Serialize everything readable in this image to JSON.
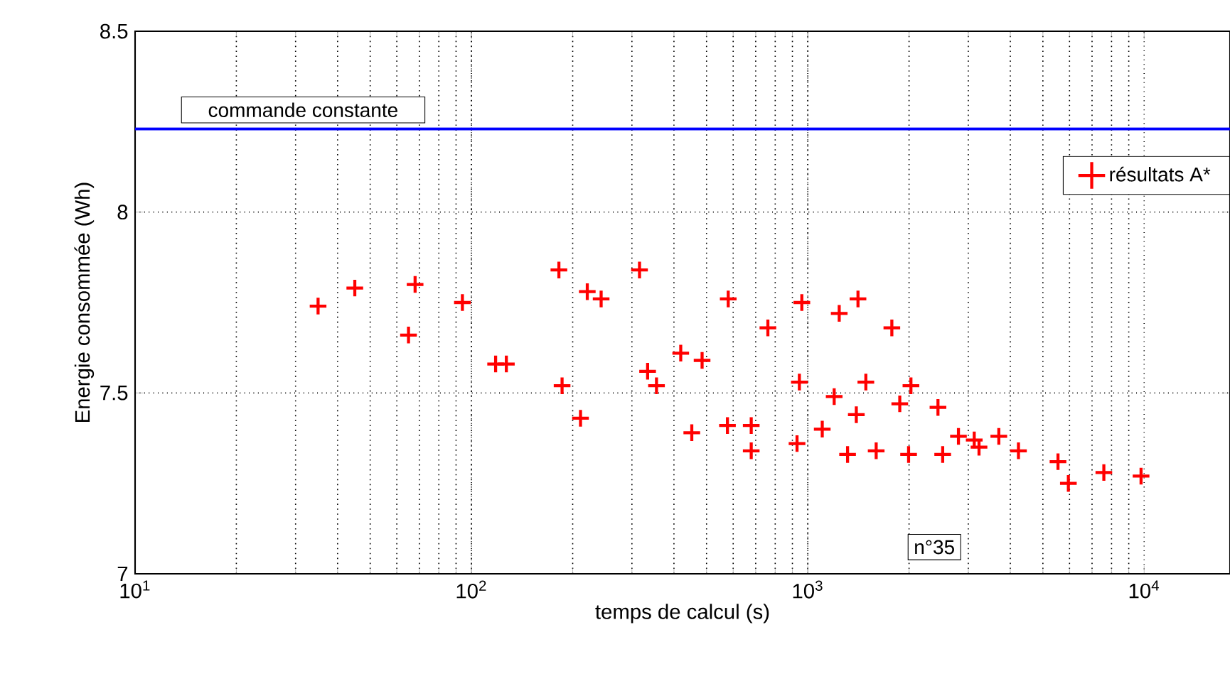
{
  "chart_data": {
    "type": "scatter",
    "xlabel": "temps de calcul (s)",
    "ylabel": "Energie consommée (Wh)",
    "log": "x",
    "grid": true,
    "legend": "top right",
    "marker": "cross",
    "xlim": [
      10,
      18000
    ],
    "ylim": [
      7,
      8.5
    ],
    "xticks": [
      {
        "value": 10,
        "label": "10$^{1}$"
      },
      {
        "value": 100,
        "label": "10$^{2}$"
      },
      {
        "value": 1000,
        "label": "10$^{3}$"
      },
      {
        "value": 10000,
        "label": "10$^{4}$"
      }
    ],
    "yticks": [
      7,
      7.5,
      8,
      8.5
    ],
    "ref_lines": [
      {
        "axis": "y",
        "value": 8.23,
        "label": "commande constante",
        "color": "#0000ff"
      }
    ],
    "annotations": [
      "n°35"
    ],
    "series": [
      {
        "name": "résultats A*",
        "color": "#ff0000",
        "x": [
          35,
          45,
          68,
          65,
          94,
          118,
          127,
          182,
          186,
          211,
          221,
          243,
          316,
          334,
          355,
          419,
          485,
          452,
          580,
          577,
          679,
          679,
          761,
          929,
          960,
          944,
          1104,
          1198,
          1240,
          1410,
          1394,
          1313,
          1488,
          1597,
          1778,
          1877,
          2026,
          1994,
          2438,
          2518,
          2805,
          3125,
          3229,
          3698,
          4230,
          5545,
          5953,
          7590,
          9790
        ],
        "values": [
          7.74,
          7.79,
          7.8,
          7.66,
          7.75,
          7.58,
          7.58,
          7.84,
          7.52,
          7.43,
          7.78,
          7.76,
          7.84,
          7.56,
          7.52,
          7.61,
          7.59,
          7.39,
          7.76,
          7.41,
          7.41,
          7.34,
          7.68,
          7.36,
          7.75,
          7.53,
          7.4,
          7.49,
          7.72,
          7.76,
          7.44,
          7.33,
          7.53,
          7.34,
          7.68,
          7.47,
          7.52,
          7.33,
          7.46,
          7.33,
          7.38,
          7.37,
          7.35,
          7.38,
          7.34,
          7.31,
          7.25,
          7.28,
          7.27
        ]
      }
    ]
  }
}
